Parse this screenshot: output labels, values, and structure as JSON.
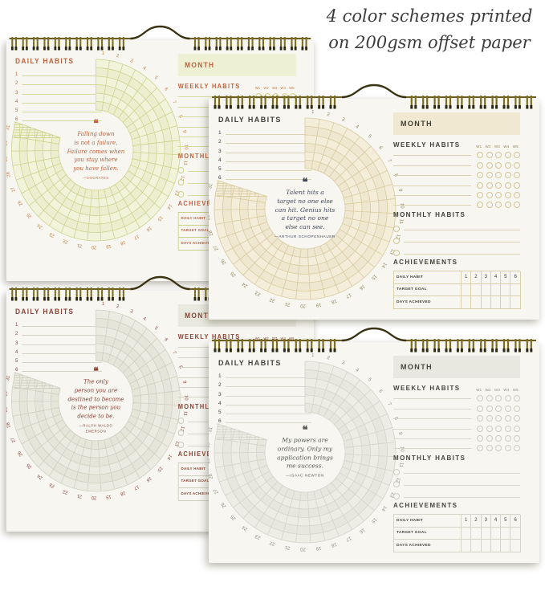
{
  "annotation": {
    "lines": [
      "4 color schemes printed",
      "on 200gsm offset paper"
    ]
  },
  "shared": {
    "daily_habits_label": "DAILY HABITS",
    "daily_row_numbers": [
      "1",
      "2",
      "3",
      "4",
      "5",
      "6"
    ],
    "day_count": 31,
    "month_label": "MONTH",
    "weekly_habits_label": "WEEKLY HABITS",
    "week_columns": [
      "W1",
      "W2",
      "W3",
      "W4",
      "W5"
    ],
    "weekly_row_count": 6,
    "monthly_habits_label": "MONTHLY HABITS",
    "monthly_row_count": 3,
    "achievements_label": "ACHIEVEMENTS",
    "achievements_row_labels": [
      "DAILY HABIT",
      "TARGET GOAL",
      "DAYS ACHIEVED"
    ],
    "achievements_columns": [
      "1",
      "2",
      "3",
      "4",
      "5",
      "6"
    ],
    "quote_mark_char": "❝",
    "paper_color": "#f7f6f1",
    "binding_colors": {
      "wire": "#7c6d24",
      "tip": "#2c2711",
      "hanger": "#3a3312",
      "rail": "#6b5e1e"
    }
  },
  "pages": [
    {
      "name": "top-left",
      "scheme": "citrus-green",
      "quote": "Falling down\nis not a failure.\nFailure comes when\nyou stay where\nyou have fallen.",
      "author": "—Socrates",
      "colors": {
        "heading": "#bf6240",
        "grid": "#ccd28c",
        "fill": "#f1f3da",
        "fillAlt": "#e7eac4",
        "numbers": "#c47c42",
        "line": "#d5da9e",
        "circle": "#ccd28c",
        "monthFill": "#edf0d2",
        "quote": "#c2603c",
        "tableText": "#bf6240",
        "tableLine": "#ccd28c"
      }
    },
    {
      "name": "top-right",
      "scheme": "warm-tan",
      "quote": "Talent hits a\ntarget no one else\ncan hit. Genius hits\na target no one\nelse can see.",
      "author": "—Arthur Schopenhauer",
      "colors": {
        "heading": "#3e3f33",
        "grid": "#d9cba0",
        "fill": "#f3edda",
        "fillAlt": "#ebe1c5",
        "numbers": "#8d8458",
        "line": "#dbd2b6",
        "circle": "#d4c596",
        "monthFill": "#f0e8d1",
        "quote": "#414757",
        "tableText": "#3e3f33",
        "tableLine": "#d9cfac"
      }
    },
    {
      "name": "bottom-left",
      "scheme": "gray-maroon",
      "quote": "The only\nperson you are\ndestined to become\nis the person you\ndecide to be.",
      "author": "—Ralph Waldo\nEmerson",
      "colors": {
        "heading": "#8b4237",
        "grid": "#cfcfc0",
        "fill": "#ebebe1",
        "fillAlt": "#e0e0d2",
        "numbers": "#8b4237",
        "line": "#d4d4c8",
        "circle": "#c9c9ba",
        "monthFill": "#e9e9df",
        "quote": "#8b4237",
        "tableText": "#8b4237",
        "tableLine": "#cfcfc0"
      }
    },
    {
      "name": "bottom-right",
      "scheme": "cool-gray",
      "quote": "My powers are\nordinary. Only my\napplication brings\nme success.",
      "author": "—Isaac Newton",
      "colors": {
        "heading": "#45463c",
        "grid": "#d4d4c8",
        "fill": "#edede6",
        "fillAlt": "#e2e2d7",
        "numbers": "#8d8d80",
        "line": "#d8d8cd",
        "circle": "#cdcdc0",
        "monthFill": "#e8e8e1",
        "quote": "#565b51",
        "tableText": "#45463c",
        "tableLine": "#d4d4c8"
      }
    }
  ]
}
